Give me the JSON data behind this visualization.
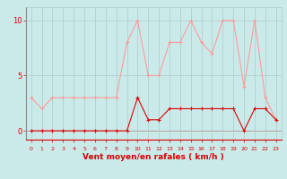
{
  "hours": [
    0,
    1,
    2,
    3,
    4,
    5,
    6,
    7,
    8,
    9,
    10,
    11,
    12,
    13,
    14,
    15,
    16,
    17,
    18,
    19,
    20,
    21,
    22,
    23
  ],
  "wind_avg": [
    0,
    0,
    0,
    0,
    0,
    0,
    0,
    0,
    0,
    0,
    3,
    1,
    1,
    2,
    2,
    2,
    2,
    2,
    2,
    2,
    0,
    2,
    2,
    1
  ],
  "wind_gust": [
    3,
    2,
    3,
    3,
    3,
    3,
    3,
    3,
    3,
    8,
    10,
    5,
    5,
    8,
    8,
    10,
    8,
    7,
    10,
    10,
    4,
    10,
    3,
    1
  ],
  "bg_color": "#caeaea",
  "line_avg_color": "#dd0000",
  "line_gust_color": "#ff9999",
  "grid_color": "#aacccc",
  "axis_color": "#888888",
  "xlabel": "Vent moyen/en rafales ( km/h )",
  "yticks": [
    0,
    5,
    10
  ],
  "xlim": [
    -0.5,
    23.5
  ],
  "ylim": [
    -0.8,
    11.2
  ]
}
